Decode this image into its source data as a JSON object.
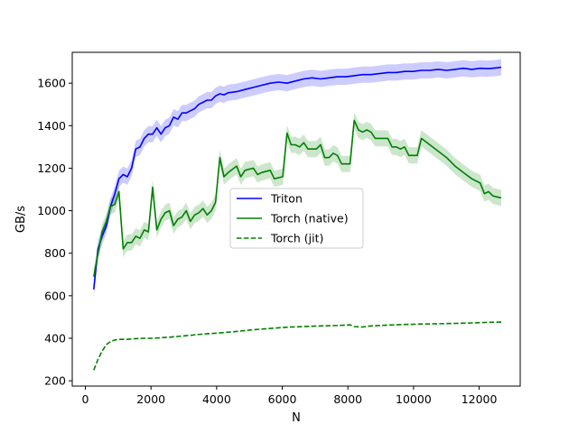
{
  "chart_data": {
    "type": "line",
    "title": "",
    "xlabel": "N",
    "ylabel": "GB/s",
    "xlim": [
      -400,
      13250
    ],
    "ylim": [
      175,
      1745
    ],
    "xticks": [
      0,
      2000,
      4000,
      6000,
      8000,
      10000,
      12000
    ],
    "yticks": [
      200,
      400,
      600,
      800,
      1000,
      1200,
      1400,
      1600
    ],
    "grid": false,
    "legend_position": "center",
    "series": [
      {
        "name": "Triton",
        "color": "#0000ff",
        "linestyle": "solid",
        "band": true,
        "points": [
          [
            256,
            630
          ],
          [
            384,
            820
          ],
          [
            512,
            880
          ],
          [
            640,
            930
          ],
          [
            768,
            1020
          ],
          [
            896,
            1080
          ],
          [
            1024,
            1150
          ],
          [
            1152,
            1170
          ],
          [
            1280,
            1160
          ],
          [
            1408,
            1200
          ],
          [
            1536,
            1290
          ],
          [
            1664,
            1300
          ],
          [
            1792,
            1340
          ],
          [
            1920,
            1360
          ],
          [
            2048,
            1360
          ],
          [
            2176,
            1390
          ],
          [
            2304,
            1360
          ],
          [
            2432,
            1390
          ],
          [
            2560,
            1400
          ],
          [
            2688,
            1440
          ],
          [
            2816,
            1430
          ],
          [
            2944,
            1460
          ],
          [
            3072,
            1460
          ],
          [
            3200,
            1470
          ],
          [
            3328,
            1480
          ],
          [
            3456,
            1500
          ],
          [
            3584,
            1510
          ],
          [
            3712,
            1520
          ],
          [
            3840,
            1520
          ],
          [
            3968,
            1540
          ],
          [
            4096,
            1550
          ],
          [
            4224,
            1545
          ],
          [
            4352,
            1555
          ],
          [
            4608,
            1560
          ],
          [
            4864,
            1570
          ],
          [
            5120,
            1580
          ],
          [
            5376,
            1590
          ],
          [
            5632,
            1600
          ],
          [
            5888,
            1605
          ],
          [
            6144,
            1600
          ],
          [
            6400,
            1610
          ],
          [
            6656,
            1620
          ],
          [
            6912,
            1625
          ],
          [
            7168,
            1620
          ],
          [
            7424,
            1625
          ],
          [
            7680,
            1630
          ],
          [
            7936,
            1630
          ],
          [
            8192,
            1635
          ],
          [
            8448,
            1640
          ],
          [
            8704,
            1640
          ],
          [
            8960,
            1645
          ],
          [
            9216,
            1650
          ],
          [
            9472,
            1650
          ],
          [
            9728,
            1655
          ],
          [
            9984,
            1655
          ],
          [
            10240,
            1660
          ],
          [
            10496,
            1660
          ],
          [
            10752,
            1665
          ],
          [
            11008,
            1660
          ],
          [
            11264,
            1665
          ],
          [
            11520,
            1670
          ],
          [
            11776,
            1665
          ],
          [
            12032,
            1670
          ],
          [
            12288,
            1668
          ],
          [
            12544,
            1672
          ],
          [
            12672,
            1675
          ]
        ]
      },
      {
        "name": "Torch (native)",
        "color": "#008000",
        "linestyle": "solid",
        "band": true,
        "points": [
          [
            256,
            690
          ],
          [
            384,
            800
          ],
          [
            512,
            900
          ],
          [
            640,
            950
          ],
          [
            768,
            1020
          ],
          [
            896,
            1030
          ],
          [
            1024,
            1090
          ],
          [
            1152,
            820
          ],
          [
            1280,
            850
          ],
          [
            1408,
            850
          ],
          [
            1536,
            880
          ],
          [
            1664,
            870
          ],
          [
            1792,
            910
          ],
          [
            1920,
            900
          ],
          [
            2048,
            1110
          ],
          [
            2176,
            910
          ],
          [
            2304,
            960
          ],
          [
            2432,
            990
          ],
          [
            2560,
            1000
          ],
          [
            2688,
            930
          ],
          [
            2816,
            960
          ],
          [
            2944,
            970
          ],
          [
            3072,
            1000
          ],
          [
            3200,
            950
          ],
          [
            3328,
            980
          ],
          [
            3456,
            990
          ],
          [
            3584,
            1010
          ],
          [
            3712,
            980
          ],
          [
            3840,
            1000
          ],
          [
            3968,
            1040
          ],
          [
            4096,
            1250
          ],
          [
            4224,
            1160
          ],
          [
            4352,
            1180
          ],
          [
            4608,
            1210
          ],
          [
            4736,
            1160
          ],
          [
            4864,
            1190
          ],
          [
            5120,
            1200
          ],
          [
            5248,
            1170
          ],
          [
            5376,
            1180
          ],
          [
            5632,
            1190
          ],
          [
            5760,
            1150
          ],
          [
            6016,
            1160
          ],
          [
            6144,
            1365
          ],
          [
            6272,
            1310
          ],
          [
            6400,
            1310
          ],
          [
            6528,
            1300
          ],
          [
            6656,
            1320
          ],
          [
            6784,
            1290
          ],
          [
            7040,
            1290
          ],
          [
            7168,
            1310
          ],
          [
            7296,
            1250
          ],
          [
            7424,
            1250
          ],
          [
            7552,
            1270
          ],
          [
            7680,
            1260
          ],
          [
            7808,
            1220
          ],
          [
            8064,
            1220
          ],
          [
            8192,
            1425
          ],
          [
            8320,
            1380
          ],
          [
            8448,
            1370
          ],
          [
            8576,
            1380
          ],
          [
            8704,
            1370
          ],
          [
            8832,
            1340
          ],
          [
            9088,
            1340
          ],
          [
            9216,
            1340
          ],
          [
            9344,
            1300
          ],
          [
            9472,
            1300
          ],
          [
            9600,
            1290
          ],
          [
            9728,
            1300
          ],
          [
            9856,
            1260
          ],
          [
            9984,
            1260
          ],
          [
            10112,
            1260
          ],
          [
            10240,
            1340
          ],
          [
            10496,
            1310
          ],
          [
            10752,
            1280
          ],
          [
            11008,
            1250
          ],
          [
            11264,
            1210
          ],
          [
            11520,
            1180
          ],
          [
            11776,
            1150
          ],
          [
            12032,
            1130
          ],
          [
            12160,
            1080
          ],
          [
            12288,
            1090
          ],
          [
            12416,
            1070
          ],
          [
            12544,
            1065
          ],
          [
            12672,
            1060
          ]
        ]
      },
      {
        "name": "Torch (jit)",
        "color": "#008000",
        "linestyle": "dashed",
        "band": false,
        "points": [
          [
            256,
            250
          ],
          [
            384,
            300
          ],
          [
            512,
            340
          ],
          [
            640,
            370
          ],
          [
            768,
            385
          ],
          [
            896,
            392
          ],
          [
            1024,
            395
          ],
          [
            1280,
            395
          ],
          [
            1536,
            398
          ],
          [
            1792,
            400
          ],
          [
            2048,
            400
          ],
          [
            2560,
            405
          ],
          [
            3072,
            412
          ],
          [
            3584,
            420
          ],
          [
            4096,
            425
          ],
          [
            4608,
            432
          ],
          [
            5120,
            440
          ],
          [
            5632,
            446
          ],
          [
            6144,
            452
          ],
          [
            6656,
            455
          ],
          [
            7168,
            458
          ],
          [
            7680,
            460
          ],
          [
            8064,
            463
          ],
          [
            8192,
            455
          ],
          [
            8448,
            453
          ],
          [
            8704,
            458
          ],
          [
            9216,
            462
          ],
          [
            9728,
            465
          ],
          [
            10240,
            467
          ],
          [
            10752,
            468
          ],
          [
            11264,
            470
          ],
          [
            11776,
            472
          ],
          [
            12288,
            475
          ],
          [
            12672,
            476
          ]
        ]
      }
    ]
  }
}
